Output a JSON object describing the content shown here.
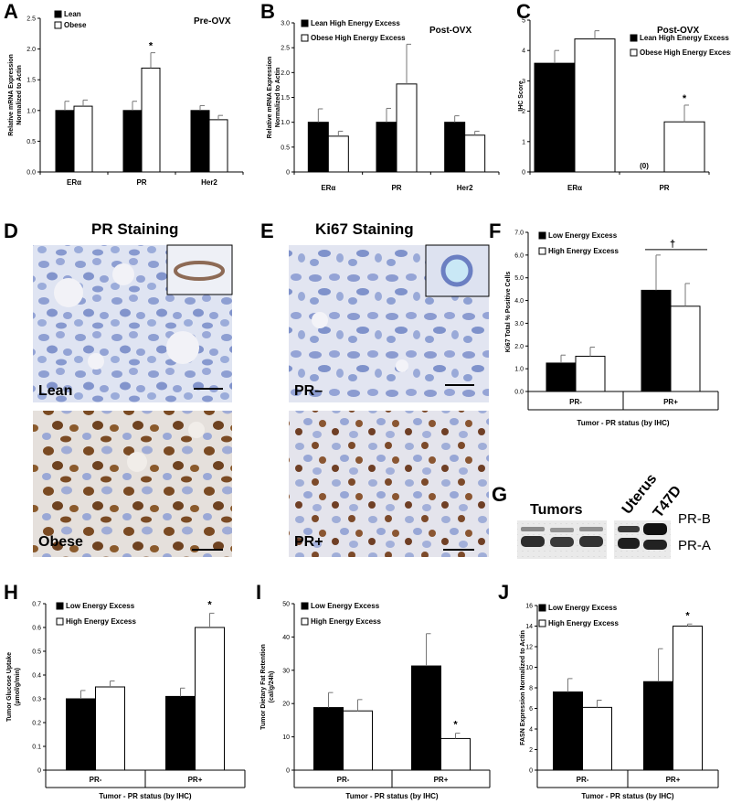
{
  "panels": {
    "A": "A",
    "B": "B",
    "C": "C",
    "D": "D",
    "E": "E",
    "F": "F",
    "G": "G",
    "H": "H",
    "I": "I",
    "J": "J"
  },
  "stains": {
    "pr_title": "PR Staining",
    "ki67_title": "Ki67 Staining",
    "lean": "Lean",
    "obese": "Obese",
    "pr_minus": "PR–",
    "pr_plus": "PR+"
  },
  "blot": {
    "tumors": "Tumors",
    "uterus": "Uterus",
    "t47d": "T47D",
    "pr_b": "PR-B",
    "pr_a": "PR-A"
  },
  "colors": {
    "black_bar": "#000000",
    "white_bar": "#ffffff",
    "tissue_blue": "#a9b7dc",
    "nuclei_brown": "#7a4a22"
  },
  "chart_data": [
    {
      "id": "A",
      "type": "bar",
      "title": "Pre-OVX",
      "ylabel": [
        "Relative mRNA Expression",
        "Normalized to Actin"
      ],
      "categories": [
        "ERα",
        "PR",
        "Her2"
      ],
      "ylim": [
        0,
        2.5
      ],
      "yticks": [
        "0.0",
        "0.5",
        "1.0",
        "1.5",
        "2.0",
        "2.5"
      ],
      "series": [
        {
          "name": "Lean",
          "values": [
            1.0,
            1.0,
            1.0
          ],
          "errors": [
            0.15,
            0.15,
            0.08
          ]
        },
        {
          "name": "Obese",
          "values": [
            1.07,
            1.69,
            0.85
          ],
          "errors": [
            0.1,
            0.25,
            0.07
          ]
        }
      ],
      "legend": "top-left",
      "stars": [
        "",
        "*",
        ""
      ],
      "xlabel": ""
    },
    {
      "id": "B",
      "type": "bar",
      "title": "Post-OVX",
      "ylabel": [
        "Relative mRNA Expression",
        "Normalized to Actin"
      ],
      "categories": [
        "ERα",
        "PR",
        "Her2"
      ],
      "ylim": [
        0,
        3.0
      ],
      "yticks": [
        "0",
        "0.5",
        "1.0",
        "1.5",
        "2.0",
        "2.5",
        "3.0"
      ],
      "series": [
        {
          "name": "Lean High Energy Excess",
          "values": [
            1.0,
            1.0,
            1.0
          ],
          "errors": [
            0.27,
            0.28,
            0.13
          ]
        },
        {
          "name": "Obese High Energy Excess",
          "values": [
            0.72,
            1.77,
            0.74
          ],
          "errors": [
            0.1,
            0.8,
            0.08
          ]
        }
      ],
      "legend": "top-left",
      "stars": [
        "",
        "",
        ""
      ],
      "xlabel": ""
    },
    {
      "id": "C",
      "type": "bar",
      "title": "Post-OVX",
      "ylabel": [
        "IHC Score"
      ],
      "categories": [
        "ERα",
        "PR"
      ],
      "ylim": [
        0,
        5
      ],
      "yticks": [
        "0",
        "1",
        "2",
        "3",
        "4",
        "5"
      ],
      "series": [
        {
          "name": "Lean High Energy Excess",
          "values": [
            3.58,
            0
          ],
          "errors": [
            0.42,
            0
          ]
        },
        {
          "name": "Obese High Energy Excess",
          "values": [
            4.38,
            1.65
          ],
          "errors": [
            0.27,
            0.55
          ]
        }
      ],
      "legend": "top-right",
      "stars": [
        "",
        "*"
      ],
      "annotations": [
        "(0)"
      ],
      "xlabel": ""
    },
    {
      "id": "F",
      "type": "bar",
      "ylabel": [
        "Ki67 Total % Positive Cells"
      ],
      "categories": [
        "PR-",
        "PR+"
      ],
      "ylim": [
        0,
        7.0
      ],
      "yticks": [
        "0.0",
        "1.0",
        "2.0",
        "3.0",
        "4.0",
        "5.0",
        "6.0",
        "7.0"
      ],
      "series": [
        {
          "name": "Low Energy Excess",
          "values": [
            1.25,
            4.45
          ],
          "errors": [
            0.35,
            1.55
          ]
        },
        {
          "name": "High Energy Excess",
          "values": [
            1.55,
            3.75
          ],
          "errors": [
            0.4,
            1.0
          ]
        }
      ],
      "legend": "top-left",
      "stars": [
        "",
        "†"
      ],
      "xlabel": "Tumor - PR status (by IHC)"
    },
    {
      "id": "H",
      "type": "bar",
      "ylabel": [
        "Tumor Glucose Uptake",
        "(µmol/g/min)"
      ],
      "categories": [
        "PR-",
        "PR+"
      ],
      "ylim": [
        0,
        0.7
      ],
      "yticks": [
        "0",
        "0.1",
        "0.2",
        "0.3",
        "0.4",
        "0.5",
        "0.6",
        "0.7"
      ],
      "series": [
        {
          "name": "Low Energy Excess",
          "values": [
            0.3,
            0.31
          ],
          "errors": [
            0.035,
            0.035
          ]
        },
        {
          "name": "High Energy Excess",
          "values": [
            0.35,
            0.6
          ],
          "errors": [
            0.025,
            0.06
          ]
        }
      ],
      "legend": "top-left",
      "stars": [
        "",
        "*"
      ],
      "xlabel": "Tumor - PR status (by IHC)"
    },
    {
      "id": "I",
      "type": "bar",
      "ylabel": [
        "Tumor Dietary Fat Retention",
        "(cal/g/24h)"
      ],
      "categories": [
        "PR-",
        "PR+"
      ],
      "ylim": [
        0,
        50
      ],
      "yticks": [
        "0",
        "10",
        "20",
        "30",
        "40",
        "50"
      ],
      "series": [
        {
          "name": "Low Energy Excess",
          "values": [
            18.8,
            31.3
          ],
          "errors": [
            4.5,
            9.7
          ]
        },
        {
          "name": "High Energy Excess",
          "values": [
            17.8,
            9.5
          ],
          "errors": [
            3.4,
            1.6
          ]
        }
      ],
      "legend": "top-left",
      "stars": [
        "",
        "*"
      ],
      "xlabel": "Tumor - PR status (by IHC)"
    },
    {
      "id": "J",
      "type": "bar",
      "ylabel": [
        "FASN Expression Normalized to Actin"
      ],
      "categories": [
        "PR-",
        "PR+"
      ],
      "ylim": [
        0,
        16
      ],
      "yticks": [
        "0",
        "2",
        "4",
        "6",
        "8",
        "10",
        "12",
        "14",
        "16"
      ],
      "series": [
        {
          "name": "Low Energy Excess",
          "values": [
            7.6,
            8.6
          ],
          "errors": [
            1.3,
            3.2
          ]
        },
        {
          "name": "High Energy Excess",
          "values": [
            6.1,
            14.0
          ],
          "errors": [
            0.7,
            0.2
          ]
        }
      ],
      "legend": "top-left",
      "stars": [
        "",
        "*"
      ],
      "xlabel": "Tumor - PR status (by IHC)"
    }
  ]
}
